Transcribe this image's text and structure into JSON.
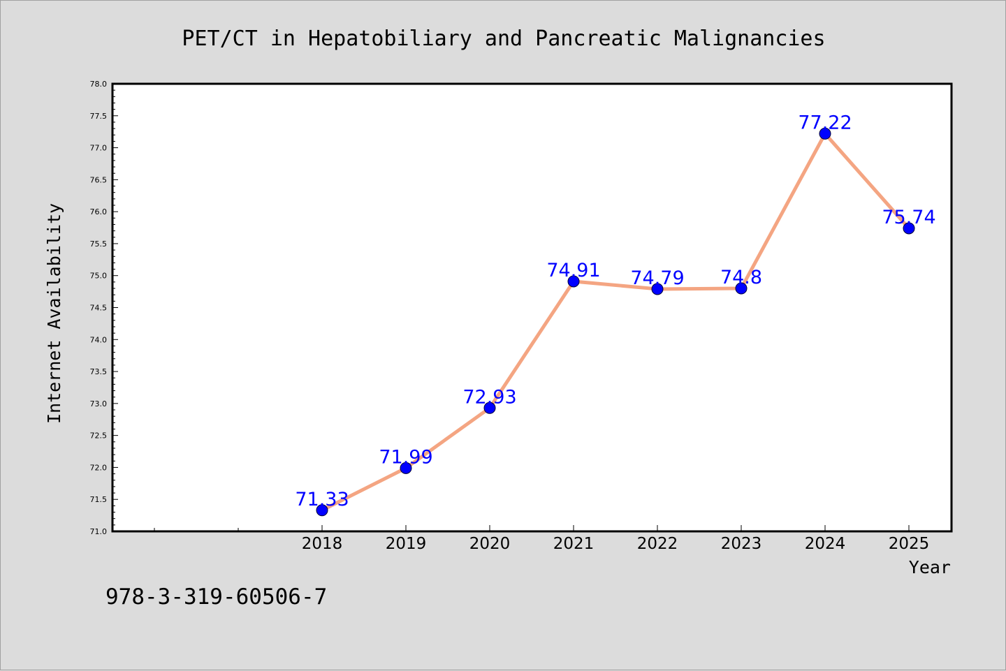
{
  "chart_data": {
    "type": "line",
    "title": "PET/CT in Hepatobiliary and Pancreatic Malignancies",
    "xlabel": "Year",
    "ylabel": "Internet Availability",
    "categories": [
      "2018",
      "2019",
      "2020",
      "2021",
      "2022",
      "2023",
      "2024",
      "2025"
    ],
    "values": [
      71.33,
      71.99,
      72.93,
      74.91,
      74.79,
      74.8,
      77.22,
      75.74
    ],
    "data_labels": [
      "71.33",
      "71.99",
      "72.93",
      "74.91",
      "74.79",
      "74.8",
      "77.22",
      "75.74"
    ],
    "yticks": [
      "71.0",
      "71.5",
      "72.0",
      "72.5",
      "73.0",
      "73.5",
      "74.0",
      "74.5",
      "75.0",
      "75.5",
      "76.0",
      "76.5",
      "77.0",
      "77.5",
      "78.0"
    ],
    "ylim": [
      71.0,
      78.0
    ],
    "grid": false,
    "legend": "none",
    "colors": {
      "line": "#f4a582",
      "marker": "#0000ff",
      "label": "#0000ff",
      "background": "#dcdcdc",
      "plot_background": "#ffffff"
    }
  },
  "caption": "978-3-319-60506-7"
}
